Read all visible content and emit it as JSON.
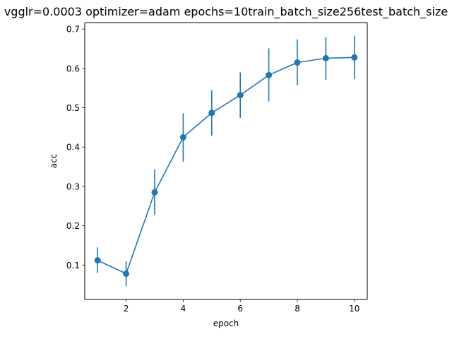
{
  "chart_data": {
    "type": "line",
    "title": "vgglr=0.0003 optimizer=adam epochs=10train_batch_size256test_batch_size",
    "xlabel": "epoch",
    "ylabel": "acc",
    "xlim": [
      0.55,
      10.45
    ],
    "ylim": [
      0.0125,
      0.7165
    ],
    "xticks": [
      2,
      4,
      6,
      8,
      10
    ],
    "yticks": [
      0.1,
      0.2,
      0.3,
      0.4,
      0.5,
      0.6,
      0.7
    ],
    "grid": false,
    "series": [
      {
        "color": "#1f77b4",
        "marker": "circle",
        "error_bars": true,
        "x": [
          1,
          2,
          3,
          4,
          5,
          6,
          7,
          8,
          9,
          10
        ],
        "y": [
          0.112,
          0.078,
          0.285,
          0.425,
          0.487,
          0.532,
          0.583,
          0.615,
          0.626,
          0.628
        ],
        "err_low": [
          0.08,
          0.046,
          0.228,
          0.363,
          0.429,
          0.474,
          0.516,
          0.557,
          0.571,
          0.573
        ],
        "err_high": [
          0.145,
          0.11,
          0.343,
          0.486,
          0.544,
          0.59,
          0.651,
          0.674,
          0.68,
          0.683
        ]
      }
    ]
  }
}
